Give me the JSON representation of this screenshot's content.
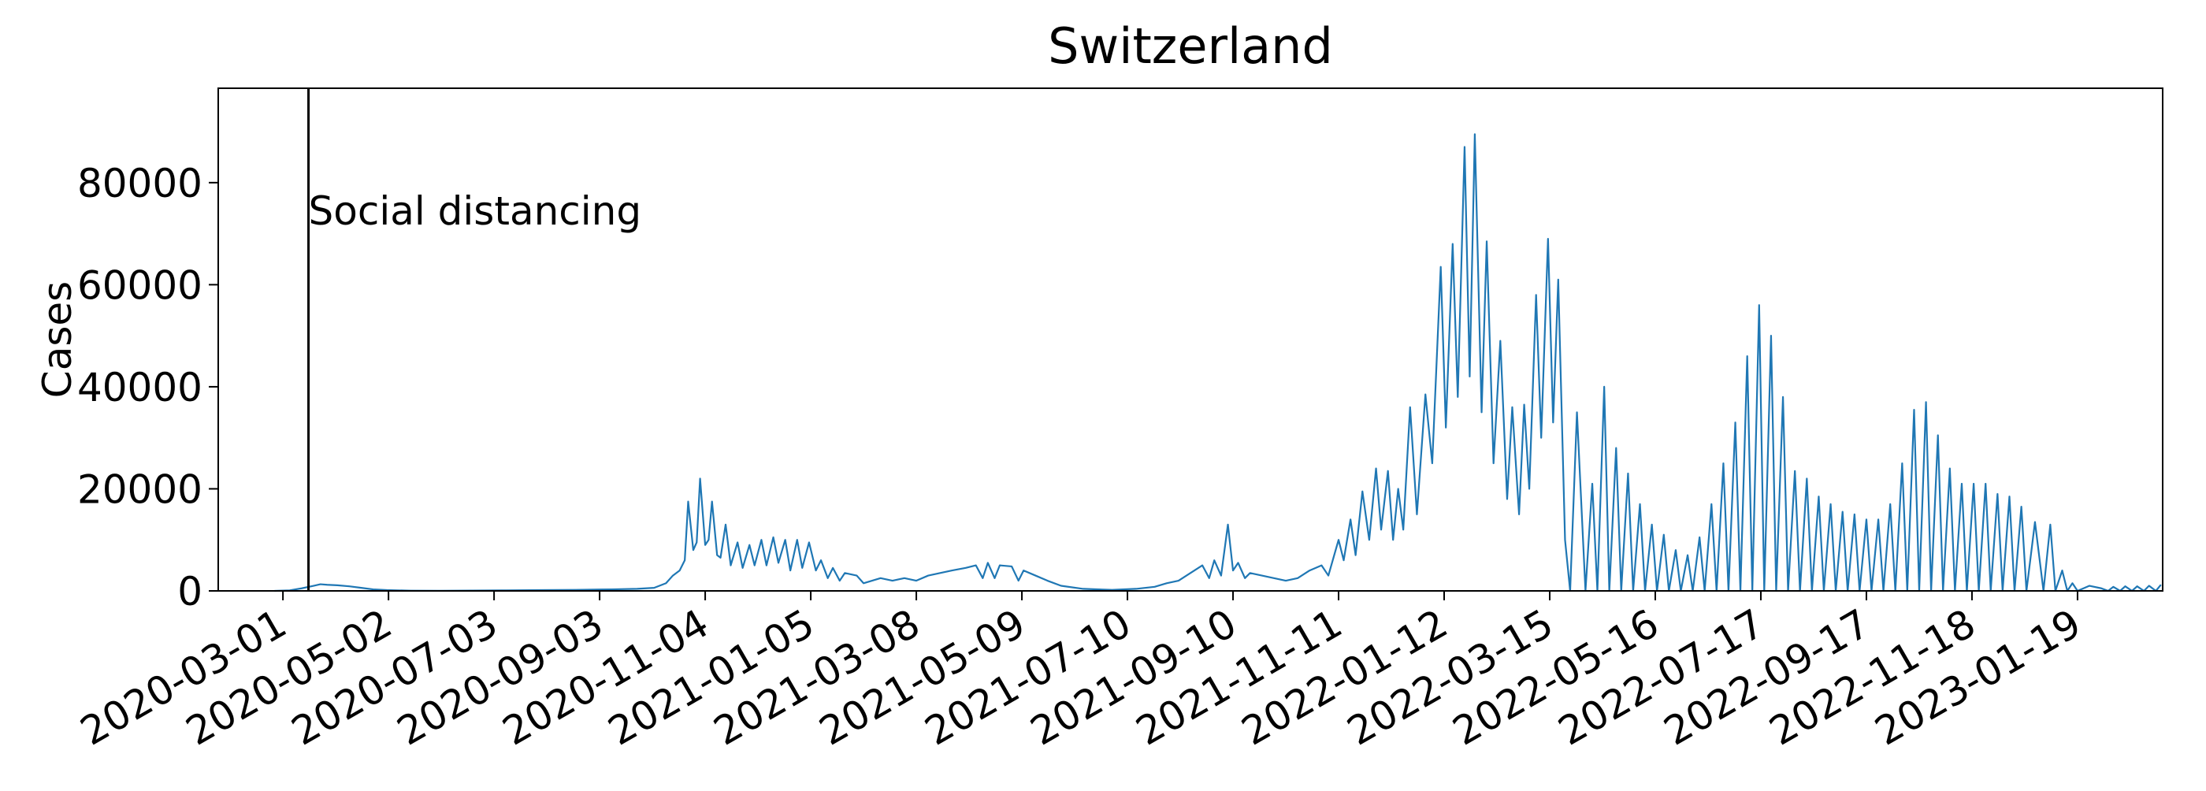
{
  "chart_data": {
    "type": "line",
    "title": "Switzerland",
    "ylabel": "Cases",
    "color": "#1f77b4",
    "grid": false,
    "xlim": [
      "2020-01-23",
      "2023-03-10"
    ],
    "xticks": [
      "2020-03-01",
      "2020-05-02",
      "2020-07-03",
      "2020-09-03",
      "2020-11-04",
      "2021-01-05",
      "2021-03-08",
      "2021-05-09",
      "2021-07-10",
      "2021-09-10",
      "2021-11-11",
      "2022-01-12",
      "2022-03-15",
      "2022-05-16",
      "2022-07-17",
      "2022-09-17",
      "2022-11-18",
      "2023-01-19"
    ],
    "ylim": [
      0,
      98500
    ],
    "yticks": [
      0,
      20000,
      40000,
      60000,
      80000
    ],
    "annotations": [
      {
        "text": "Social distancing",
        "x": "2020-03-16"
      }
    ],
    "x": [
      "2020-02-25",
      "2020-03-05",
      "2020-03-12",
      "2020-03-19",
      "2020-03-23",
      "2020-03-27",
      "2020-04-02",
      "2020-04-09",
      "2020-04-16",
      "2020-04-23",
      "2020-05-01",
      "2020-05-15",
      "2020-06-01",
      "2020-06-20",
      "2020-07-10",
      "2020-07-31",
      "2020-08-20",
      "2020-09-10",
      "2020-09-25",
      "2020-10-05",
      "2020-10-12",
      "2020-10-16",
      "2020-10-20",
      "2020-10-23",
      "2020-10-25",
      "2020-10-28",
      "2020-10-30",
      "2020-11-01",
      "2020-11-04",
      "2020-11-06",
      "2020-11-08",
      "2020-11-11",
      "2020-11-13",
      "2020-11-16",
      "2020-11-19",
      "2020-11-23",
      "2020-11-26",
      "2020-11-30",
      "2020-12-03",
      "2020-12-07",
      "2020-12-10",
      "2020-12-14",
      "2020-12-17",
      "2020-12-21",
      "2020-12-24",
      "2020-12-28",
      "2020-12-31",
      "2021-01-04",
      "2021-01-08",
      "2021-01-11",
      "2021-01-15",
      "2021-01-18",
      "2021-01-22",
      "2021-01-25",
      "2021-02-01",
      "2021-02-05",
      "2021-02-15",
      "2021-02-22",
      "2021-03-01",
      "2021-03-08",
      "2021-03-15",
      "2021-03-22",
      "2021-03-29",
      "2021-04-06",
      "2021-04-12",
      "2021-04-16",
      "2021-04-19",
      "2021-04-23",
      "2021-04-26",
      "2021-05-03",
      "2021-05-07",
      "2021-05-10",
      "2021-05-17",
      "2021-05-24",
      "2021-06-01",
      "2021-06-14",
      "2021-07-01",
      "2021-07-15",
      "2021-07-26",
      "2021-08-02",
      "2021-08-09",
      "2021-08-16",
      "2021-08-23",
      "2021-08-27",
      "2021-08-30",
      "2021-09-03",
      "2021-09-07",
      "2021-09-10",
      "2021-09-13",
      "2021-09-17",
      "2021-09-20",
      "2021-09-27",
      "2021-10-04",
      "2021-10-11",
      "2021-10-18",
      "2021-10-25",
      "2021-11-01",
      "2021-11-05",
      "2021-11-11",
      "2021-11-14",
      "2021-11-18",
      "2021-11-21",
      "2021-11-25",
      "2021-11-29",
      "2021-12-03",
      "2021-12-06",
      "2021-12-10",
      "2021-12-13",
      "2021-12-16",
      "2021-12-19",
      "2021-12-23",
      "2021-12-27",
      "2022-01-01",
      "2022-01-05",
      "2022-01-10",
      "2022-01-13",
      "2022-01-17",
      "2022-01-20",
      "2022-01-24",
      "2022-01-27",
      "2022-01-30",
      "2022-02-03",
      "2022-02-06",
      "2022-02-10",
      "2022-02-14",
      "2022-02-18",
      "2022-02-21",
      "2022-02-25",
      "2022-02-28",
      "2022-03-03",
      "2022-03-07",
      "2022-03-10",
      "2022-03-14",
      "2022-03-17",
      "2022-03-20",
      "2022-03-24",
      "2022-03-27",
      "2022-03-31",
      "2022-04-05",
      "2022-04-09",
      "2022-04-12",
      "2022-04-16",
      "2022-04-19",
      "2022-04-23",
      "2022-04-26",
      "2022-04-30",
      "2022-05-03",
      "2022-05-07",
      "2022-05-10",
      "2022-05-14",
      "2022-05-17",
      "2022-05-21",
      "2022-05-24",
      "2022-05-28",
      "2022-05-31",
      "2022-06-04",
      "2022-06-07",
      "2022-06-11",
      "2022-06-14",
      "2022-06-18",
      "2022-06-21",
      "2022-06-25",
      "2022-06-28",
      "2022-07-02",
      "2022-07-05",
      "2022-07-09",
      "2022-07-12",
      "2022-07-16",
      "2022-07-19",
      "2022-07-23",
      "2022-07-26",
      "2022-07-30",
      "2022-08-02",
      "2022-08-06",
      "2022-08-09",
      "2022-08-13",
      "2022-08-16",
      "2022-08-20",
      "2022-08-23",
      "2022-08-27",
      "2022-08-30",
      "2022-09-03",
      "2022-09-06",
      "2022-09-10",
      "2022-09-13",
      "2022-09-17",
      "2022-09-20",
      "2022-09-24",
      "2022-09-27",
      "2022-10-01",
      "2022-10-04",
      "2022-10-08",
      "2022-10-11",
      "2022-10-15",
      "2022-10-18",
      "2022-10-22",
      "2022-10-25",
      "2022-10-29",
      "2022-11-01",
      "2022-11-05",
      "2022-11-08",
      "2022-11-12",
      "2022-11-15",
      "2022-11-19",
      "2022-11-22",
      "2022-11-26",
      "2022-11-29",
      "2022-12-03",
      "2022-12-06",
      "2022-12-10",
      "2022-12-13",
      "2022-12-17",
      "2022-12-20",
      "2022-12-25",
      "2022-12-30",
      "2023-01-03",
      "2023-01-06",
      "2023-01-10",
      "2023-01-13",
      "2023-01-16",
      "2023-01-19",
      "2023-01-26",
      "2023-02-02",
      "2023-02-06",
      "2023-02-09",
      "2023-02-13",
      "2023-02-16",
      "2023-02-20",
      "2023-02-23",
      "2023-02-27",
      "2023-03-02",
      "2023-03-06",
      "2023-03-09"
    ],
    "values": [
      0,
      100,
      500,
      1000,
      1300,
      1200,
      1100,
      900,
      600,
      300,
      150,
      50,
      30,
      60,
      100,
      150,
      200,
      300,
      400,
      600,
      1500,
      3000,
      4000,
      6000,
      17500,
      8000,
      9500,
      22000,
      9000,
      10000,
      17500,
      7000,
      6500,
      13000,
      5000,
      9500,
      4500,
      9000,
      5000,
      10000,
      5000,
      10500,
      5500,
      10000,
      4000,
      10000,
      4500,
      9500,
      4000,
      6000,
      2500,
      4500,
      2000,
      3500,
      3000,
      1500,
      2500,
      2000,
      2500,
      2000,
      3000,
      3500,
      4000,
      4500,
      5000,
      2500,
      5500,
      2500,
      5000,
      4800,
      2000,
      4000,
      3000,
      2000,
      1000,
      400,
      200,
      400,
      800,
      1500,
      2000,
      3500,
      5000,
      2500,
      6000,
      3000,
      13000,
      4000,
      5500,
      2500,
      3500,
      3000,
      2500,
      2000,
      2500,
      4000,
      5000,
      3000,
      10000,
      6000,
      14000,
      7000,
      19500,
      10000,
      24000,
      12000,
      23500,
      10000,
      20000,
      12000,
      36000,
      15000,
      38500,
      25000,
      63500,
      32000,
      68000,
      38000,
      87000,
      42000,
      89500,
      35000,
      68500,
      25000,
      49000,
      18000,
      36000,
      15000,
      36500,
      20000,
      58000,
      30000,
      69000,
      33000,
      61000,
      10000,
      0,
      35000,
      0,
      21000,
      0,
      40000,
      0,
      28000,
      0,
      23000,
      0,
      17000,
      0,
      13000,
      0,
      11000,
      0,
      8000,
      0,
      7000,
      0,
      10500,
      0,
      17000,
      0,
      25000,
      0,
      33000,
      0,
      46000,
      0,
      56000,
      0,
      50000,
      0,
      38000,
      0,
      23500,
      0,
      22000,
      0,
      18500,
      0,
      17000,
      0,
      15500,
      0,
      15000,
      0,
      14000,
      0,
      14000,
      0,
      17000,
      0,
      25000,
      0,
      35500,
      0,
      37000,
      0,
      30500,
      0,
      24000,
      0,
      21000,
      0,
      21000,
      0,
      21000,
      0,
      19000,
      0,
      18500,
      0,
      16500,
      0,
      13500,
      0,
      13000,
      0,
      4000,
      0,
      1500,
      0,
      1000,
      500,
      0,
      800,
      0,
      900,
      0,
      900,
      0,
      1000,
      0,
      1200
    ]
  }
}
